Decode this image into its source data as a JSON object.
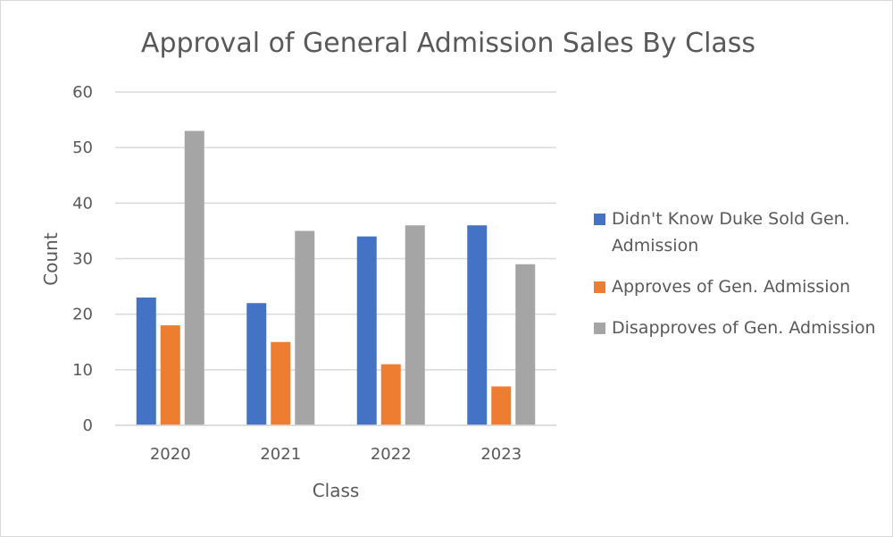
{
  "chart_data": {
    "type": "bar",
    "title": "Approval of General  Admission Sales By Class",
    "xlabel": "Class",
    "ylabel": "Count",
    "ylim": [
      0,
      60
    ],
    "yticks": [
      0,
      10,
      20,
      30,
      40,
      50,
      60
    ],
    "categories": [
      "2020",
      "2021",
      "2022",
      "2023"
    ],
    "series": [
      {
        "name": "Didn't Know Duke Sold Gen. Admission",
        "color": "#4472C4",
        "values": [
          23,
          22,
          34,
          36
        ]
      },
      {
        "name": "Approves of Gen. Admission",
        "color": "#ED7D31",
        "values": [
          18,
          15,
          11,
          7
        ]
      },
      {
        "name": "Disapproves of Gen. Admission",
        "color": "#A5A5A5",
        "values": [
          53,
          35,
          36,
          29
        ]
      }
    ],
    "grid": true,
    "legend_position": "right"
  }
}
